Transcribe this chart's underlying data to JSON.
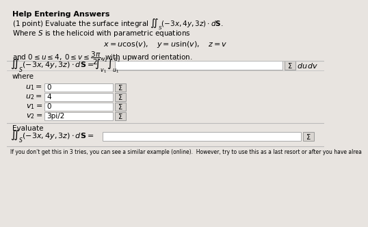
{
  "bg_color": "#d4d0cc",
  "content_bg": "#e8e4e0",
  "title": "Help Entering Answers",
  "line1": "(1 point) Evaluate the surface integral",
  "integral_main": "$\\iint_S (-3x, 4y, 3z) \\cdot d\\mathbf{S}.$",
  "line2": "Where $S$ is the helicoid with parametric equations",
  "parametric": "$x = u\\cos(v), \\quad y = u\\sin(v), \\quad z = v$",
  "line3a": "and $0 \\leq u \\leq 4,\\; 0 \\leq v \\leq \\dfrac{3\\pi}{2}$, with upward orientation.",
  "integral_eq_left": "$\\iint_S (-3x, 4y, 3z) \\cdot d\\mathbf{S} = \\int_{v_1}^{v_2}\\int_{u_1}^{u_2}$",
  "du_dv": "$du\\,dv$",
  "where_text": "where",
  "u1_label": "$u_1 =$",
  "u1_val": "0",
  "u2_label": "$u_2 =$",
  "u2_val": "4",
  "v1_label": "$v_1 =$",
  "v1_val": "0",
  "v2_label": "$v_2 =$",
  "v2_val": "3pi/2",
  "evaluate_text": "Evaluate",
  "eval_integral": "$\\iint_S (-3x, 4y, 3z) \\cdot d\\mathbf{S} =$",
  "bottom_text": "If you don't get this in 3 tries, you can see a similar example (online).  However, try to use this as a last resort or after you have alrea"
}
